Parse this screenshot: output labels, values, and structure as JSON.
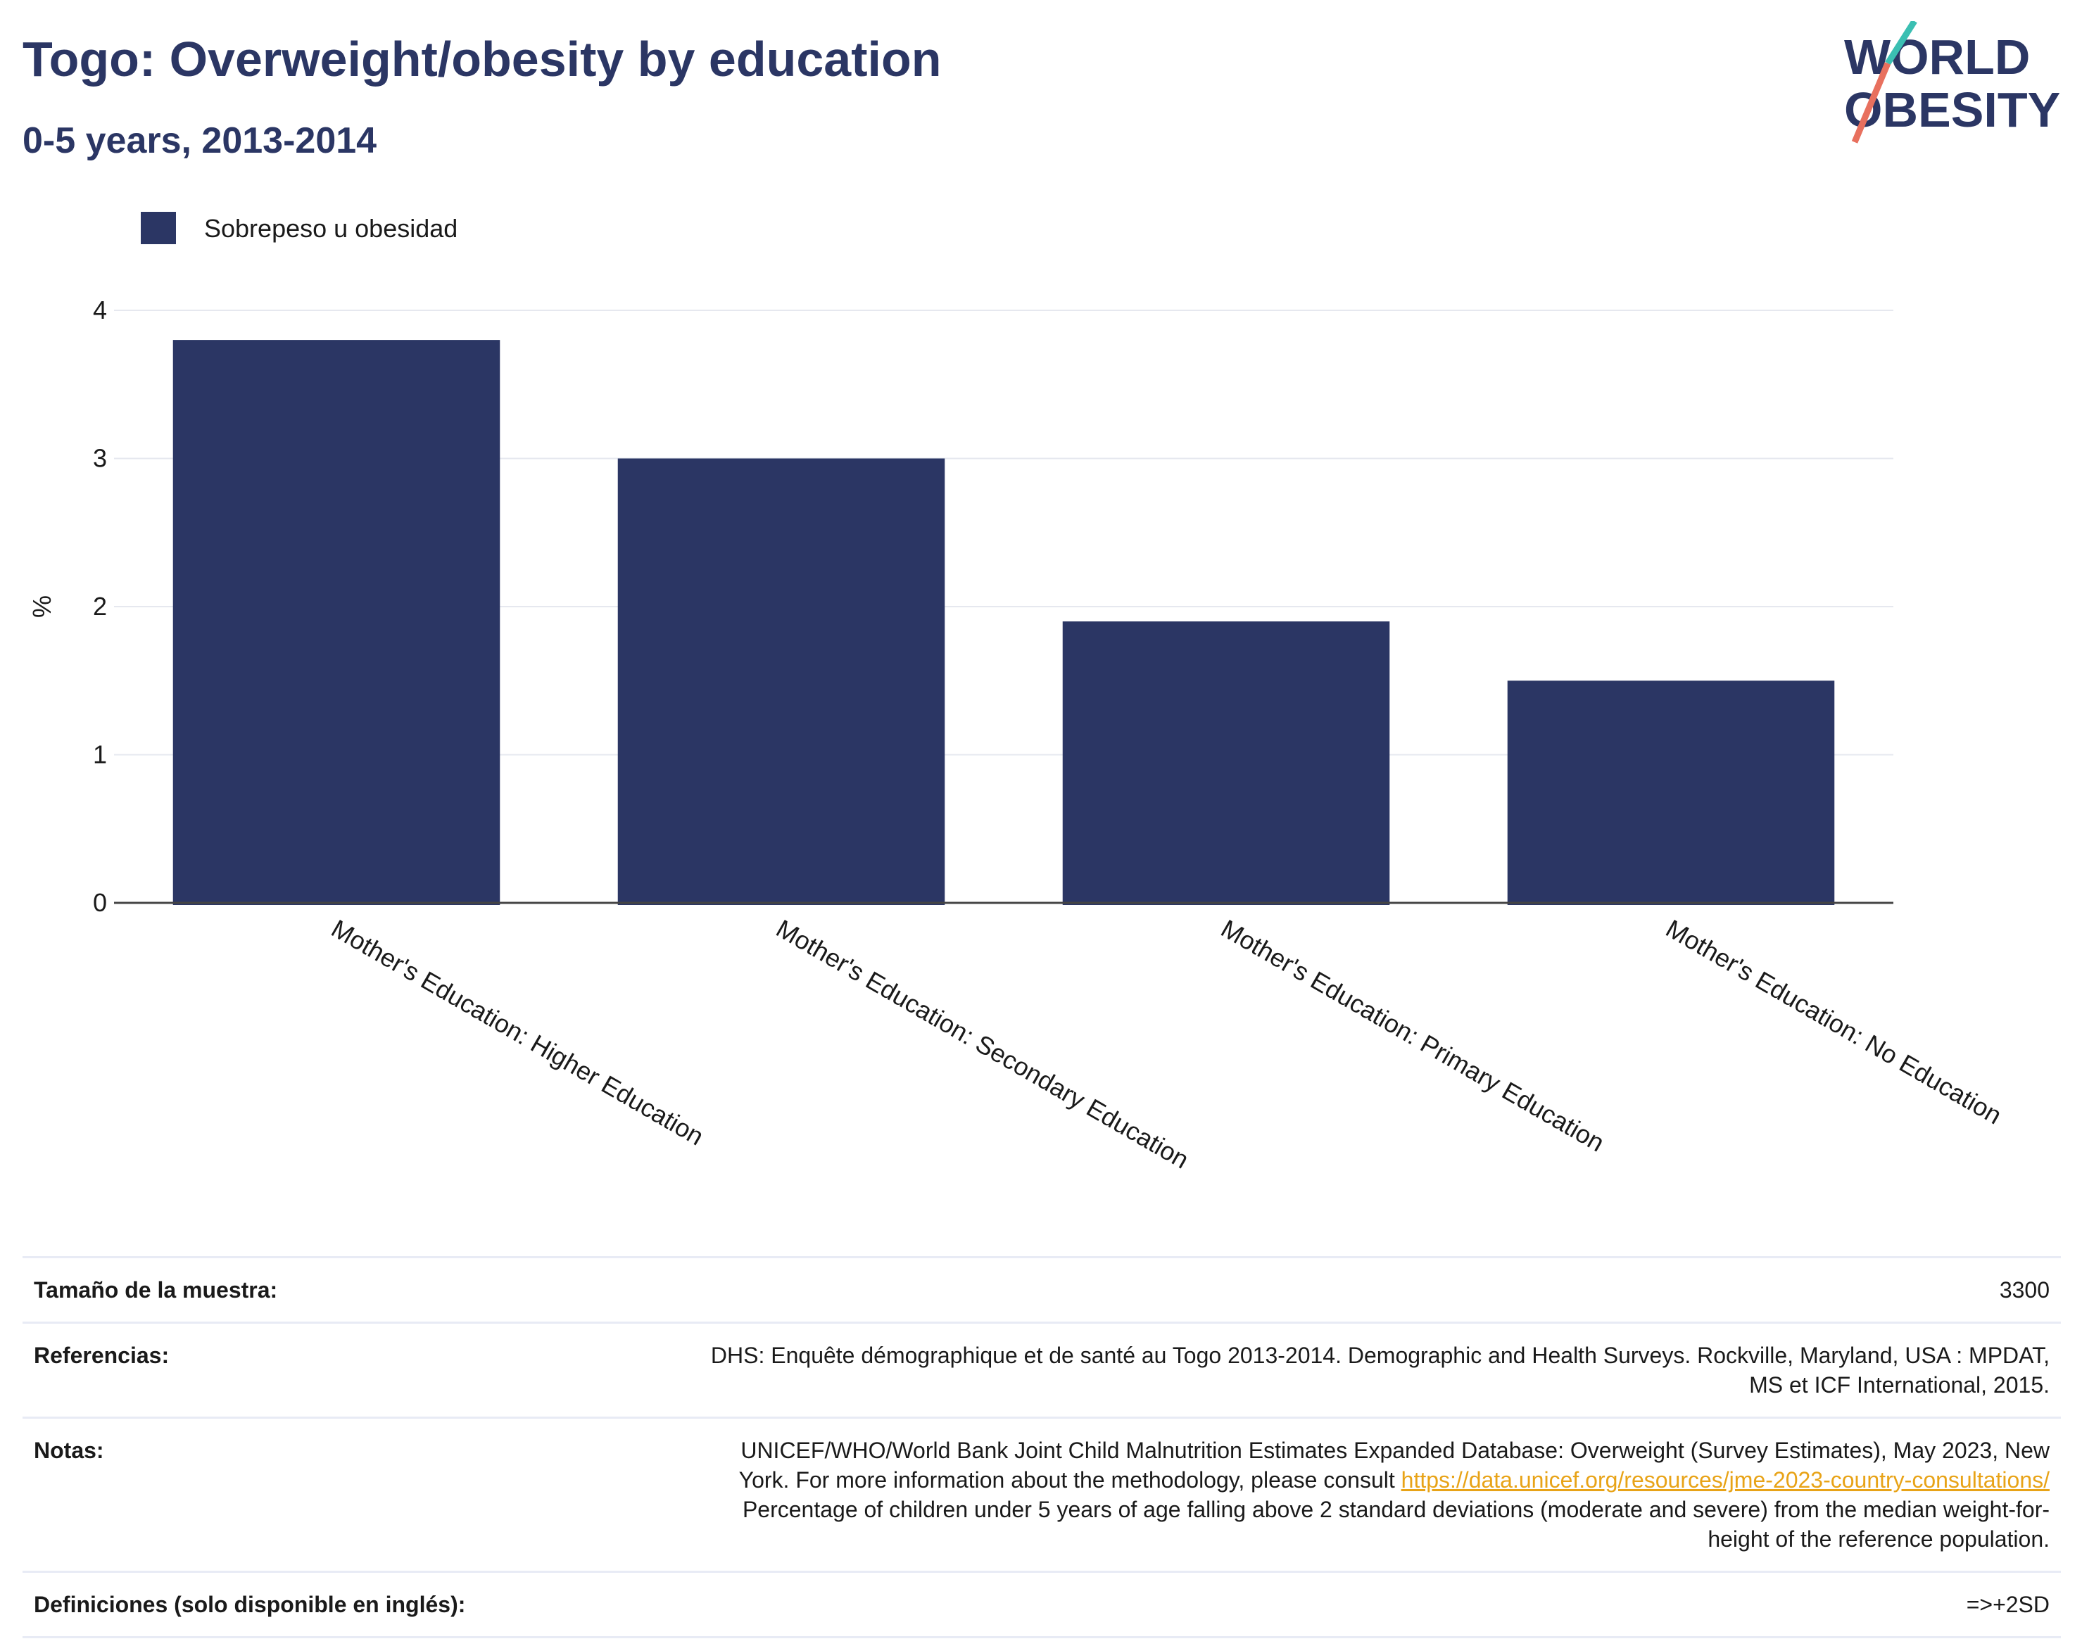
{
  "header": {
    "title": "Togo: Overweight/obesity by education",
    "subtitle": "0-5 years, 2013-2014"
  },
  "logo": {
    "line1": "WORLD",
    "line2": "OBESITY",
    "colors": {
      "text": "#2b3664",
      "slash_teal": "#3bbfb2",
      "slash_coral": "#e8705e"
    }
  },
  "chart_data": {
    "type": "bar",
    "categories": [
      "Mother's Education: Higher Education",
      "Mother's Education: Secondary Education",
      "Mother's Education: Primary Education",
      "Mother's Education: No Education"
    ],
    "series": [
      {
        "name": "Sobrepeso u obesidad",
        "values": [
          3.8,
          3.0,
          1.9,
          1.5
        ],
        "color": "#2b3664"
      }
    ],
    "ylabel": "%",
    "ylim": [
      0,
      4
    ],
    "yticks": [
      0,
      1,
      2,
      3,
      4
    ],
    "grid": true,
    "legend_position": "top-left"
  },
  "info": {
    "sample_label": "Tamaño de la muestra:",
    "sample_value": "3300",
    "references_label": "Referencias:",
    "references_value": "DHS: Enquête démographique et de santé au Togo 2013-2014. Demographic and Health Surveys. Rockville, Maryland, USA : MPDAT, MS et ICF International, 2015.",
    "notes_label": "Notas:",
    "notes_text_before": "UNICEF/WHO/World Bank Joint Child Malnutrition Estimates Expanded Database: Overweight (Survey Estimates), May 2023, New York. For more information about the methodology, please consult ",
    "notes_link": "https://data.unicef.org/resources/jme-2023-country-consultations/",
    "notes_text_after": "Percentage of children under 5 years of age falling above 2 standard deviations (moderate and severe) from the median weight-for-height of the reference population.",
    "definitions_label": "Definiciones (solo disponible en inglés):",
    "definitions_value": "=>+2SD"
  }
}
